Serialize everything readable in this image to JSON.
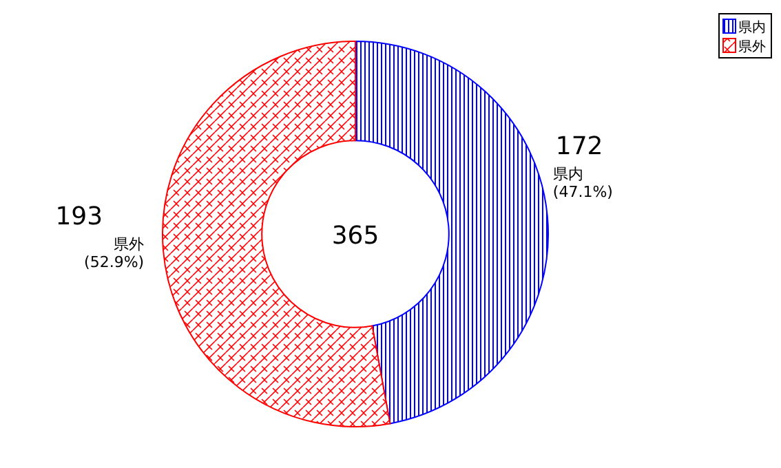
{
  "chart_data": {
    "type": "donut",
    "categories": [
      "県内",
      "県外"
    ],
    "values": [
      172,
      193
    ],
    "colors": [
      "#0000ff",
      "#ff0000"
    ],
    "value_labels": [
      "172\n県内\n(47.1%)",
      "193\n県外\n(52.9%)"
    ],
    "annotations": [
      "365"
    ],
    "legend": "top right"
  }
}
